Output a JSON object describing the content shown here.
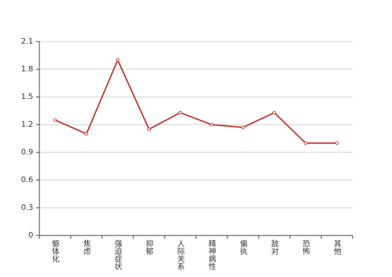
{
  "chart_data": {
    "type": "line",
    "categories": [
      "躯体化",
      "焦虑",
      "强迫症状",
      "抑郁",
      "人际关系",
      "精神病性",
      "偏执",
      "敌对",
      "恐怖",
      "其他"
    ],
    "values": [
      1.25,
      1.1,
      1.9,
      1.15,
      1.33,
      1.2,
      1.17,
      1.33,
      1.0,
      1.0
    ],
    "color": "#c23531",
    "ylim": [
      0,
      2.1
    ],
    "yticks": [
      0,
      0.3,
      0.6,
      0.9,
      1.2,
      1.5,
      1.8,
      2.1
    ],
    "grid": true
  }
}
